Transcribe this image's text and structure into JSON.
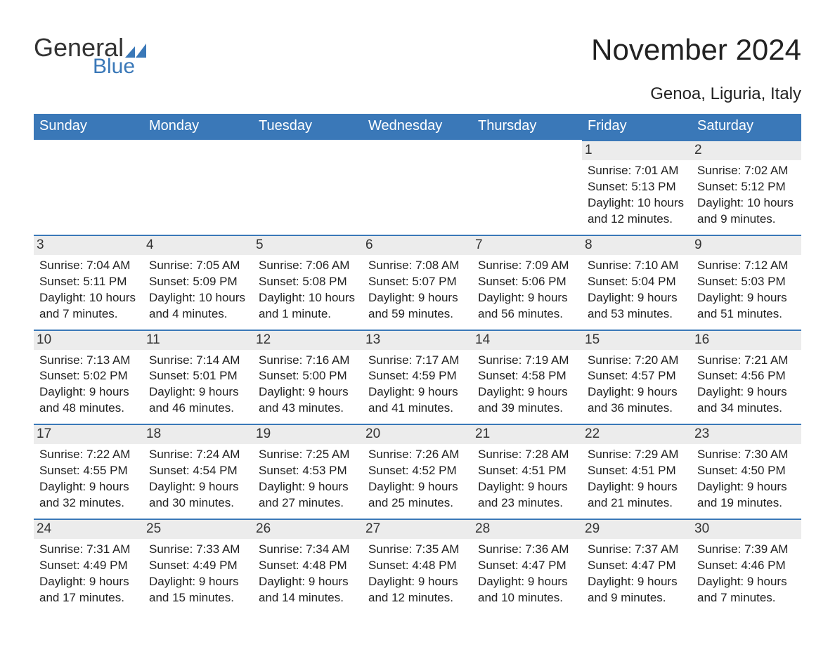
{
  "logo": {
    "text1": "General",
    "text2": "Blue",
    "text1_color": "#333333",
    "text2_color": "#3a78b8",
    "icon_color": "#3a78b8"
  },
  "title": "November 2024",
  "subtitle": "Genoa, Liguria, Italy",
  "colors": {
    "header_bg": "#3a78b8",
    "header_text": "#ffffff",
    "daynum_bg": "#ececec",
    "daynum_border": "#3a78b8",
    "body_text": "#222222",
    "page_bg": "#ffffff"
  },
  "fonts": {
    "title_size": 42,
    "subtitle_size": 24,
    "header_size": 20,
    "daynum_size": 19,
    "info_size": 17
  },
  "day_headers": [
    "Sunday",
    "Monday",
    "Tuesday",
    "Wednesday",
    "Thursday",
    "Friday",
    "Saturday"
  ],
  "weeks": [
    [
      {
        "num": "",
        "sunrise": "",
        "sunset": "",
        "daylight": ""
      },
      {
        "num": "",
        "sunrise": "",
        "sunset": "",
        "daylight": ""
      },
      {
        "num": "",
        "sunrise": "",
        "sunset": "",
        "daylight": ""
      },
      {
        "num": "",
        "sunrise": "",
        "sunset": "",
        "daylight": ""
      },
      {
        "num": "",
        "sunrise": "",
        "sunset": "",
        "daylight": ""
      },
      {
        "num": "1",
        "sunrise": "Sunrise: 7:01 AM",
        "sunset": "Sunset: 5:13 PM",
        "daylight": "Daylight: 10 hours and 12 minutes."
      },
      {
        "num": "2",
        "sunrise": "Sunrise: 7:02 AM",
        "sunset": "Sunset: 5:12 PM",
        "daylight": "Daylight: 10 hours and 9 minutes."
      }
    ],
    [
      {
        "num": "3",
        "sunrise": "Sunrise: 7:04 AM",
        "sunset": "Sunset: 5:11 PM",
        "daylight": "Daylight: 10 hours and 7 minutes."
      },
      {
        "num": "4",
        "sunrise": "Sunrise: 7:05 AM",
        "sunset": "Sunset: 5:09 PM",
        "daylight": "Daylight: 10 hours and 4 minutes."
      },
      {
        "num": "5",
        "sunrise": "Sunrise: 7:06 AM",
        "sunset": "Sunset: 5:08 PM",
        "daylight": "Daylight: 10 hours and 1 minute."
      },
      {
        "num": "6",
        "sunrise": "Sunrise: 7:08 AM",
        "sunset": "Sunset: 5:07 PM",
        "daylight": "Daylight: 9 hours and 59 minutes."
      },
      {
        "num": "7",
        "sunrise": "Sunrise: 7:09 AM",
        "sunset": "Sunset: 5:06 PM",
        "daylight": "Daylight: 9 hours and 56 minutes."
      },
      {
        "num": "8",
        "sunrise": "Sunrise: 7:10 AM",
        "sunset": "Sunset: 5:04 PM",
        "daylight": "Daylight: 9 hours and 53 minutes."
      },
      {
        "num": "9",
        "sunrise": "Sunrise: 7:12 AM",
        "sunset": "Sunset: 5:03 PM",
        "daylight": "Daylight: 9 hours and 51 minutes."
      }
    ],
    [
      {
        "num": "10",
        "sunrise": "Sunrise: 7:13 AM",
        "sunset": "Sunset: 5:02 PM",
        "daylight": "Daylight: 9 hours and 48 minutes."
      },
      {
        "num": "11",
        "sunrise": "Sunrise: 7:14 AM",
        "sunset": "Sunset: 5:01 PM",
        "daylight": "Daylight: 9 hours and 46 minutes."
      },
      {
        "num": "12",
        "sunrise": "Sunrise: 7:16 AM",
        "sunset": "Sunset: 5:00 PM",
        "daylight": "Daylight: 9 hours and 43 minutes."
      },
      {
        "num": "13",
        "sunrise": "Sunrise: 7:17 AM",
        "sunset": "Sunset: 4:59 PM",
        "daylight": "Daylight: 9 hours and 41 minutes."
      },
      {
        "num": "14",
        "sunrise": "Sunrise: 7:19 AM",
        "sunset": "Sunset: 4:58 PM",
        "daylight": "Daylight: 9 hours and 39 minutes."
      },
      {
        "num": "15",
        "sunrise": "Sunrise: 7:20 AM",
        "sunset": "Sunset: 4:57 PM",
        "daylight": "Daylight: 9 hours and 36 minutes."
      },
      {
        "num": "16",
        "sunrise": "Sunrise: 7:21 AM",
        "sunset": "Sunset: 4:56 PM",
        "daylight": "Daylight: 9 hours and 34 minutes."
      }
    ],
    [
      {
        "num": "17",
        "sunrise": "Sunrise: 7:22 AM",
        "sunset": "Sunset: 4:55 PM",
        "daylight": "Daylight: 9 hours and 32 minutes."
      },
      {
        "num": "18",
        "sunrise": "Sunrise: 7:24 AM",
        "sunset": "Sunset: 4:54 PM",
        "daylight": "Daylight: 9 hours and 30 minutes."
      },
      {
        "num": "19",
        "sunrise": "Sunrise: 7:25 AM",
        "sunset": "Sunset: 4:53 PM",
        "daylight": "Daylight: 9 hours and 27 minutes."
      },
      {
        "num": "20",
        "sunrise": "Sunrise: 7:26 AM",
        "sunset": "Sunset: 4:52 PM",
        "daylight": "Daylight: 9 hours and 25 minutes."
      },
      {
        "num": "21",
        "sunrise": "Sunrise: 7:28 AM",
        "sunset": "Sunset: 4:51 PM",
        "daylight": "Daylight: 9 hours and 23 minutes."
      },
      {
        "num": "22",
        "sunrise": "Sunrise: 7:29 AM",
        "sunset": "Sunset: 4:51 PM",
        "daylight": "Daylight: 9 hours and 21 minutes."
      },
      {
        "num": "23",
        "sunrise": "Sunrise: 7:30 AM",
        "sunset": "Sunset: 4:50 PM",
        "daylight": "Daylight: 9 hours and 19 minutes."
      }
    ],
    [
      {
        "num": "24",
        "sunrise": "Sunrise: 7:31 AM",
        "sunset": "Sunset: 4:49 PM",
        "daylight": "Daylight: 9 hours and 17 minutes."
      },
      {
        "num": "25",
        "sunrise": "Sunrise: 7:33 AM",
        "sunset": "Sunset: 4:49 PM",
        "daylight": "Daylight: 9 hours and 15 minutes."
      },
      {
        "num": "26",
        "sunrise": "Sunrise: 7:34 AM",
        "sunset": "Sunset: 4:48 PM",
        "daylight": "Daylight: 9 hours and 14 minutes."
      },
      {
        "num": "27",
        "sunrise": "Sunrise: 7:35 AM",
        "sunset": "Sunset: 4:48 PM",
        "daylight": "Daylight: 9 hours and 12 minutes."
      },
      {
        "num": "28",
        "sunrise": "Sunrise: 7:36 AM",
        "sunset": "Sunset: 4:47 PM",
        "daylight": "Daylight: 9 hours and 10 minutes."
      },
      {
        "num": "29",
        "sunrise": "Sunrise: 7:37 AM",
        "sunset": "Sunset: 4:47 PM",
        "daylight": "Daylight: 9 hours and 9 minutes."
      },
      {
        "num": "30",
        "sunrise": "Sunrise: 7:39 AM",
        "sunset": "Sunset: 4:46 PM",
        "daylight": "Daylight: 9 hours and 7 minutes."
      }
    ]
  ]
}
